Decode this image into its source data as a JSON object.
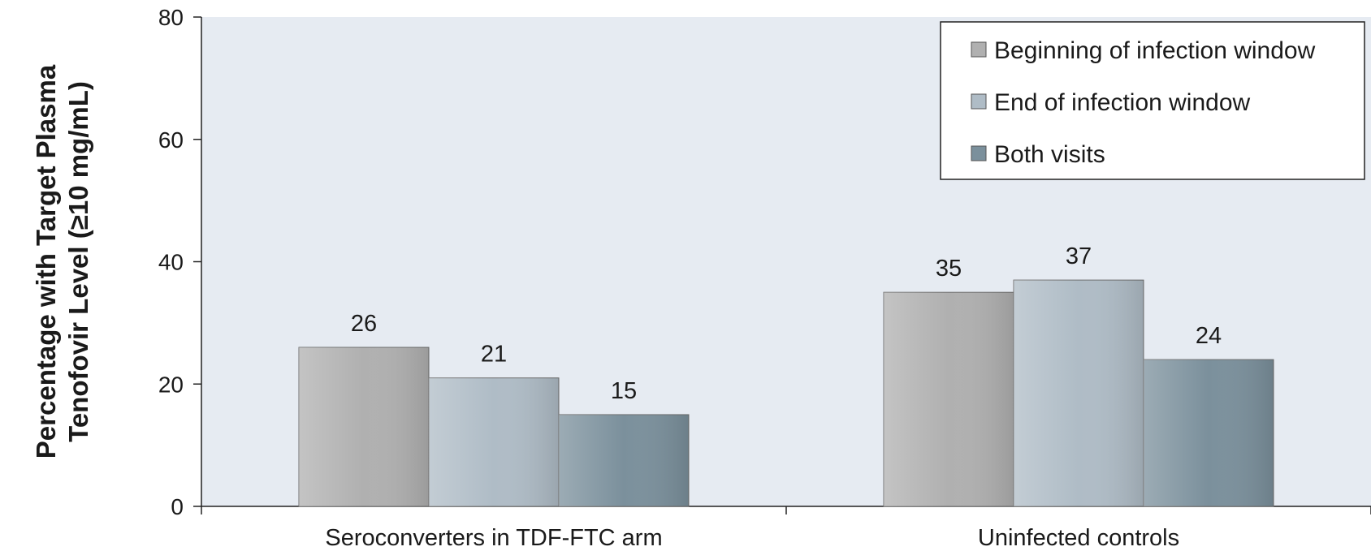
{
  "chart_data": {
    "type": "bar",
    "title": "",
    "xlabel": "",
    "ylabel": [
      "Percentage with Target Plasma",
      "Tenofovir Level (≥10 mg/mL)"
    ],
    "ylim": [
      0,
      80
    ],
    "yticks": [
      0,
      20,
      40,
      60,
      80
    ],
    "grid": false,
    "legend_position": "top-right",
    "categories": [
      "Seroconverters in TDF-FTC arm",
      "Uninfected controls"
    ],
    "series": [
      {
        "name": "Beginning of infection window",
        "values": [
          26,
          35
        ],
        "color": "#b0b0b0"
      },
      {
        "name": "End of infection window",
        "values": [
          21,
          37
        ],
        "color": "#afbcc6"
      },
      {
        "name": "Both visits",
        "values": [
          15,
          24
        ],
        "color": "#7b909c"
      }
    ],
    "plot_background": "#e6ebf2"
  }
}
